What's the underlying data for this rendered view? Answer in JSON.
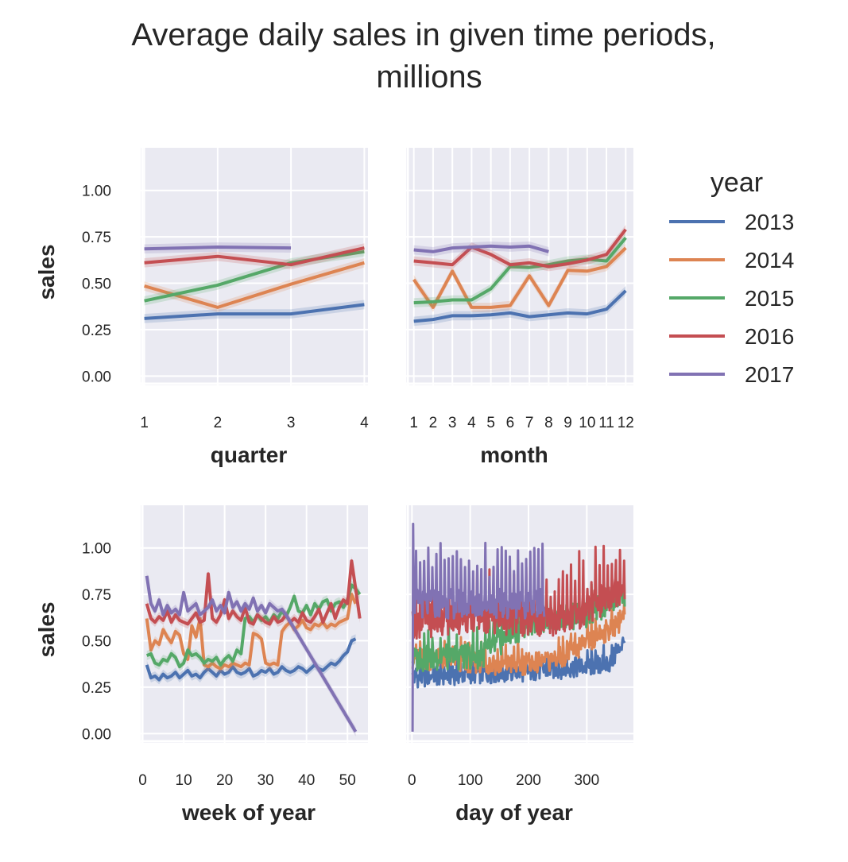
{
  "title": [
    "Average daily sales in given time periods,",
    "millions"
  ],
  "legend": {
    "title": "year",
    "entries": [
      {
        "label": "2013",
        "color": "#4c72b0"
      },
      {
        "label": "2014",
        "color": "#dd8452"
      },
      {
        "label": "2015",
        "color": "#55a868"
      },
      {
        "label": "2016",
        "color": "#c44e52"
      },
      {
        "label": "2017",
        "color": "#8172b3"
      }
    ]
  },
  "chart_data": [
    {
      "type": "line",
      "xlabel": "quarter",
      "ylabel": "sales",
      "x_ticks": [
        "1",
        "2",
        "3",
        "4"
      ],
      "y_ticks": [
        "0.00",
        "0.25",
        "0.50",
        "0.75",
        "1.00"
      ],
      "xlim": [
        0.95,
        4.05
      ],
      "ylim": [
        -0.05,
        1.23
      ],
      "x": [
        1,
        2,
        3,
        4
      ],
      "series": [
        {
          "name": "2013",
          "values": [
            0.31,
            0.335,
            0.335,
            0.385
          ]
        },
        {
          "name": "2014",
          "values": [
            0.485,
            0.37,
            0.495,
            0.61
          ]
        },
        {
          "name": "2015",
          "values": [
            0.405,
            0.49,
            0.61,
            0.67
          ]
        },
        {
          "name": "2016",
          "values": [
            0.61,
            0.645,
            0.6,
            0.69
          ]
        },
        {
          "name": "2017",
          "values": [
            0.685,
            0.695,
            0.69,
            null
          ]
        }
      ]
    },
    {
      "type": "line",
      "xlabel": "month",
      "ylabel": "",
      "x_ticks": [
        "1",
        "2",
        "3",
        "4",
        "5",
        "6",
        "7",
        "8",
        "9",
        "10",
        "11",
        "12"
      ],
      "ylim": [
        -0.05,
        1.23
      ],
      "xlim": [
        0.6,
        12.4
      ],
      "x": [
        1,
        2,
        3,
        4,
        5,
        6,
        7,
        8,
        9,
        10,
        11,
        12
      ],
      "series": [
        {
          "name": "2013",
          "values": [
            0.295,
            0.305,
            0.325,
            0.325,
            0.33,
            0.34,
            0.32,
            0.33,
            0.34,
            0.335,
            0.36,
            0.46
          ]
        },
        {
          "name": "2014",
          "values": [
            0.52,
            0.37,
            0.565,
            0.37,
            0.37,
            0.38,
            0.54,
            0.38,
            0.57,
            0.565,
            0.59,
            0.69
          ]
        },
        {
          "name": "2015",
          "values": [
            0.395,
            0.4,
            0.41,
            0.41,
            0.47,
            0.59,
            0.585,
            0.6,
            0.62,
            0.63,
            0.62,
            0.745
          ]
        },
        {
          "name": "2016",
          "values": [
            0.62,
            0.61,
            0.6,
            0.695,
            0.655,
            0.6,
            0.61,
            0.59,
            0.605,
            0.625,
            0.655,
            0.79
          ]
        },
        {
          "name": "2017",
          "values": [
            0.68,
            0.67,
            0.69,
            0.695,
            0.7,
            0.695,
            0.7,
            0.67,
            null,
            null,
            null,
            null
          ]
        }
      ]
    },
    {
      "type": "line",
      "xlabel": "week of year",
      "ylabel": "sales",
      "x_ticks": [
        "0",
        "10",
        "20",
        "30",
        "40",
        "50"
      ],
      "y_ticks": [
        "0.00",
        "0.25",
        "0.50",
        "0.75",
        "1.00"
      ],
      "xlim": [
        -0.5,
        55
      ],
      "ylim": [
        -0.05,
        1.23
      ],
      "series": [
        {
          "name": "2013",
          "x": [
            1,
            2,
            3,
            4,
            5,
            6,
            7,
            8,
            9,
            10,
            11,
            12,
            13,
            14,
            15,
            16,
            17,
            18,
            19,
            20,
            21,
            22,
            23,
            24,
            25,
            26,
            27,
            28,
            29,
            30,
            31,
            32,
            33,
            34,
            35,
            36,
            37,
            38,
            39,
            40,
            41,
            42,
            43,
            44,
            45,
            46,
            47,
            48,
            49,
            50,
            51,
            52
          ],
          "values": [
            0.37,
            0.3,
            0.31,
            0.29,
            0.32,
            0.3,
            0.31,
            0.33,
            0.3,
            0.32,
            0.34,
            0.31,
            0.32,
            0.3,
            0.33,
            0.35,
            0.33,
            0.31,
            0.34,
            0.32,
            0.33,
            0.36,
            0.33,
            0.32,
            0.33,
            0.35,
            0.31,
            0.32,
            0.34,
            0.33,
            0.35,
            0.32,
            0.33,
            0.36,
            0.34,
            0.33,
            0.34,
            0.36,
            0.35,
            0.33,
            0.35,
            0.37,
            0.35,
            0.34,
            0.36,
            0.38,
            0.37,
            0.39,
            0.42,
            0.44,
            0.5,
            0.51
          ]
        },
        {
          "name": "2014",
          "x": [
            1,
            2,
            3,
            4,
            5,
            6,
            7,
            8,
            9,
            10,
            11,
            12,
            13,
            14,
            15,
            16,
            17,
            18,
            19,
            20,
            21,
            22,
            23,
            24,
            25,
            26,
            27,
            28,
            29,
            30,
            31,
            32,
            33,
            34,
            35,
            36,
            37,
            38,
            39,
            40,
            41,
            42,
            43,
            44,
            45,
            46,
            47,
            48,
            49,
            50,
            51,
            52
          ],
          "values": [
            0.62,
            0.45,
            0.5,
            0.48,
            0.56,
            0.52,
            0.49,
            0.55,
            0.53,
            0.43,
            0.4,
            0.58,
            0.52,
            0.62,
            0.37,
            0.36,
            0.38,
            0.36,
            0.35,
            0.37,
            0.36,
            0.38,
            0.37,
            0.36,
            0.38,
            0.37,
            0.54,
            0.53,
            0.51,
            0.38,
            0.37,
            0.38,
            0.37,
            0.55,
            0.58,
            0.6,
            0.56,
            0.58,
            0.61,
            0.57,
            0.56,
            0.59,
            0.58,
            0.6,
            0.57,
            0.59,
            0.58,
            0.6,
            0.61,
            0.62,
            0.75,
            0.7
          ]
        },
        {
          "name": "2015",
          "x": [
            1,
            2,
            3,
            4,
            5,
            6,
            7,
            8,
            9,
            10,
            11,
            12,
            13,
            14,
            15,
            16,
            17,
            18,
            19,
            20,
            21,
            22,
            23,
            24,
            25,
            26,
            27,
            28,
            29,
            30,
            31,
            32,
            33,
            34,
            35,
            36,
            37,
            38,
            39,
            40,
            41,
            42,
            43,
            44,
            45,
            46,
            47,
            48,
            49,
            50,
            51,
            52,
            53
          ],
          "values": [
            0.42,
            0.43,
            0.38,
            0.37,
            0.4,
            0.39,
            0.43,
            0.41,
            0.36,
            0.38,
            0.45,
            0.42,
            0.43,
            0.41,
            0.38,
            0.4,
            0.39,
            0.41,
            0.37,
            0.4,
            0.42,
            0.39,
            0.45,
            0.43,
            0.62,
            0.63,
            0.6,
            0.64,
            0.61,
            0.63,
            0.6,
            0.64,
            0.62,
            0.66,
            0.63,
            0.68,
            0.74,
            0.66,
            0.65,
            0.69,
            0.64,
            0.7,
            0.67,
            0.71,
            0.72,
            0.66,
            0.7,
            0.71,
            0.68,
            0.72,
            0.8,
            0.78,
            0.75
          ]
        },
        {
          "name": "2016",
          "x": [
            1,
            2,
            3,
            4,
            5,
            6,
            7,
            8,
            9,
            10,
            11,
            12,
            13,
            14,
            15,
            16,
            17,
            18,
            19,
            20,
            21,
            22,
            23,
            24,
            25,
            26,
            27,
            28,
            29,
            30,
            31,
            32,
            33,
            34,
            35,
            36,
            37,
            38,
            39,
            40,
            41,
            42,
            43,
            44,
            45,
            46,
            47,
            48,
            49,
            50,
            51,
            52,
            53
          ],
          "values": [
            0.7,
            0.62,
            0.6,
            0.63,
            0.61,
            0.66,
            0.6,
            0.64,
            0.61,
            0.6,
            0.59,
            0.62,
            0.65,
            0.6,
            0.61,
            0.86,
            0.62,
            0.6,
            0.64,
            0.72,
            0.62,
            0.66,
            0.63,
            0.61,
            0.68,
            0.6,
            0.59,
            0.64,
            0.62,
            0.6,
            0.59,
            0.63,
            0.6,
            0.61,
            0.64,
            0.6,
            0.62,
            0.6,
            0.65,
            0.61,
            0.6,
            0.63,
            0.67,
            0.6,
            0.65,
            0.7,
            0.62,
            0.68,
            0.72,
            0.7,
            0.93,
            0.78,
            0.62
          ]
        },
        {
          "name": "2017",
          "x": [
            1,
            2,
            3,
            4,
            5,
            6,
            7,
            8,
            9,
            10,
            11,
            12,
            13,
            14,
            15,
            16,
            17,
            18,
            19,
            20,
            21,
            22,
            23,
            24,
            25,
            26,
            27,
            28,
            29,
            30,
            31,
            32,
            33,
            34,
            35,
            52
          ],
          "values": [
            0.85,
            0.7,
            0.66,
            0.72,
            0.64,
            0.69,
            0.65,
            0.67,
            0.64,
            0.76,
            0.66,
            0.68,
            0.7,
            0.64,
            0.66,
            0.68,
            0.72,
            0.66,
            0.69,
            0.65,
            0.76,
            0.68,
            0.71,
            0.66,
            0.7,
            0.67,
            0.73,
            0.66,
            0.69,
            0.65,
            0.7,
            0.68,
            0.66,
            0.67,
            0.64,
            0.01
          ]
        }
      ]
    },
    {
      "type": "line",
      "xlabel": "day of year",
      "ylabel": "",
      "x_ticks": [
        "0",
        "100",
        "200",
        "300"
      ],
      "xlim": [
        -10,
        380
      ],
      "ylim": [
        -0.05,
        1.23
      ],
      "series": [
        {
          "name": "2013",
          "x_range": [
            1,
            365
          ],
          "base": [
            [
              1,
              0.3
            ],
            [
              90,
              0.32
            ],
            [
              180,
              0.33
            ],
            [
              300,
              0.36
            ],
            [
              340,
              0.38
            ],
            [
              365,
              0.5
            ]
          ],
          "amplitude": 0.055,
          "spike_every": 7,
          "spike": 0.05
        },
        {
          "name": "2014",
          "x_range": [
            1,
            365
          ],
          "base": [
            [
              1,
              0.4
            ],
            [
              60,
              0.4
            ],
            [
              150,
              0.37
            ],
            [
              230,
              0.38
            ],
            [
              300,
              0.48
            ],
            [
              365,
              0.62
            ]
          ],
          "amplitude": 0.06,
          "spike_every": 7,
          "spike": 0.08
        },
        {
          "name": "2015",
          "x_range": [
            1,
            365
          ],
          "base": [
            [
              1,
              0.4
            ],
            [
              120,
              0.42
            ],
            [
              200,
              0.6
            ],
            [
              300,
              0.64
            ],
            [
              365,
              0.75
            ]
          ],
          "amplitude": 0.07,
          "spike_every": 7,
          "spike": 0.12
        },
        {
          "name": "2016",
          "x_range": [
            1,
            365
          ],
          "base": [
            [
              1,
              0.6
            ],
            [
              100,
              0.63
            ],
            [
              230,
              0.6
            ],
            [
              300,
              0.66
            ],
            [
              365,
              0.8
            ]
          ],
          "amplitude": 0.09,
          "spike_every": 7,
          "spike": 0.25
        },
        {
          "name": "2017",
          "x_range": [
            1,
            227
          ],
          "first_value": 0.01,
          "second_value": 1.13,
          "base": [
            [
              1,
              0.7
            ],
            [
              227,
              0.7
            ]
          ],
          "amplitude": 0.08,
          "spike_every": 7,
          "spike": 0.3
        }
      ]
    }
  ]
}
